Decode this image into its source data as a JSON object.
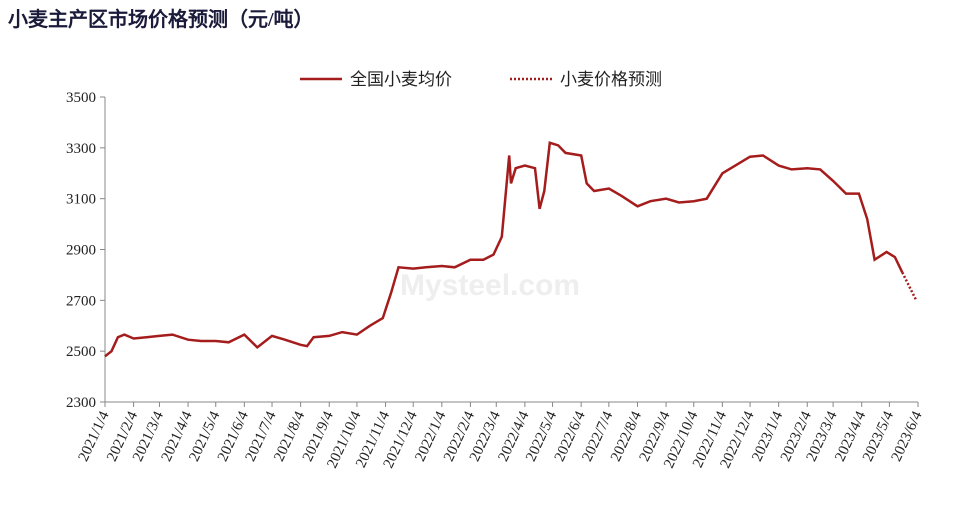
{
  "chart_data": {
    "type": "line",
    "title": "小麦主产区市场价格预测（元/吨）",
    "watermark": "Mysteel.com",
    "x": [
      "2021/1/4",
      "2021/1/11",
      "2021/1/18",
      "2021/1/25",
      "2021/2/4",
      "2021/2/18",
      "2021/3/4",
      "2021/3/18",
      "2021/4/4",
      "2021/4/18",
      "2021/5/4",
      "2021/5/18",
      "2021/6/4",
      "2021/6/18",
      "2021/7/4",
      "2021/7/18",
      "2021/8/4",
      "2021/8/11",
      "2021/8/18",
      "2021/9/4",
      "2021/9/18",
      "2021/10/4",
      "2021/10/18",
      "2021/11/1",
      "2021/11/10",
      "2021/11/18",
      "2021/12/4",
      "2021/12/18",
      "2022/1/4",
      "2022/1/18",
      "2022/2/4",
      "2022/2/18",
      "2022/3/1",
      "2022/3/10",
      "2022/3/18",
      "2022/3/20",
      "2022/3/25",
      "2022/4/4",
      "2022/4/15",
      "2022/4/20",
      "2022/4/25",
      "2022/5/1",
      "2022/5/10",
      "2022/5/18",
      "2022/6/4",
      "2022/6/10",
      "2022/6/18",
      "2022/7/4",
      "2022/7/18",
      "2022/8/4",
      "2022/8/18",
      "2022/9/4",
      "2022/9/18",
      "2022/10/4",
      "2022/10/18",
      "2022/11/4",
      "2022/11/18",
      "2022/12/4",
      "2022/12/18",
      "2023/1/4",
      "2023/1/18",
      "2023/2/4",
      "2023/2/18",
      "2023/3/4",
      "2023/3/18",
      "2023/4/1",
      "2023/4/10",
      "2023/4/18",
      "2023/5/1",
      "2023/5/10",
      "2023/5/18",
      "2023/6/2"
    ],
    "series": [
      {
        "name": "全国小麦均价",
        "color": "#a51c1c",
        "dash": false,
        "values": [
          2480,
          2500,
          2555,
          2565,
          2550,
          2555,
          2560,
          2565,
          2545,
          2540,
          2540,
          2535,
          2565,
          2515,
          2560,
          2545,
          2525,
          2520,
          2555,
          2560,
          2575,
          2565,
          2600,
          2630,
          2730,
          2830,
          2825,
          2830,
          2835,
          2830,
          2860,
          2860,
          2880,
          2950,
          3270,
          3160,
          3220,
          3230,
          3220,
          3060,
          3130,
          3320,
          3310,
          3280,
          3270,
          3160,
          3130,
          3140,
          3110,
          3070,
          3090,
          3100,
          3085,
          3090,
          3100,
          3200,
          3230,
          3265,
          3270,
          3230,
          3215,
          3220,
          3215,
          3170,
          3120,
          3120,
          3020,
          2860,
          2890,
          2870,
          2810,
          null
        ]
      },
      {
        "name": "小麦价格预测",
        "color": "#a51c1c",
        "dash": true,
        "values": [
          null,
          null,
          null,
          null,
          null,
          null,
          null,
          null,
          null,
          null,
          null,
          null,
          null,
          null,
          null,
          null,
          null,
          null,
          null,
          null,
          null,
          null,
          null,
          null,
          null,
          null,
          null,
          null,
          null,
          null,
          null,
          null,
          null,
          null,
          null,
          null,
          null,
          null,
          null,
          null,
          null,
          null,
          null,
          null,
          null,
          null,
          null,
          null,
          null,
          null,
          null,
          null,
          null,
          null,
          null,
          null,
          null,
          null,
          null,
          null,
          null,
          null,
          null,
          null,
          null,
          null,
          null,
          null,
          null,
          null,
          2810,
          2700
        ]
      }
    ],
    "xlim": [
      "2021/1/4",
      "2023/6/4"
    ],
    "xticks": [
      "2021/1/4",
      "2021/2/4",
      "2021/3/4",
      "2021/4/4",
      "2021/5/4",
      "2021/6/4",
      "2021/7/4",
      "2021/8/4",
      "2021/9/4",
      "2021/10/4",
      "2021/11/4",
      "2021/12/4",
      "2022/1/4",
      "2022/2/4",
      "2022/3/4",
      "2022/4/4",
      "2022/5/4",
      "2022/6/4",
      "2022/7/4",
      "2022/8/4",
      "2022/9/4",
      "2022/10/4",
      "2022/11/4",
      "2022/12/4",
      "2023/1/4",
      "2023/2/4",
      "2023/3/4",
      "2023/4/4",
      "2023/5/4",
      "2023/6/4"
    ],
    "ylim": [
      2300,
      3500
    ],
    "yticks": [
      2300,
      2500,
      2700,
      2900,
      3100,
      3300,
      3500
    ],
    "grid": false
  }
}
